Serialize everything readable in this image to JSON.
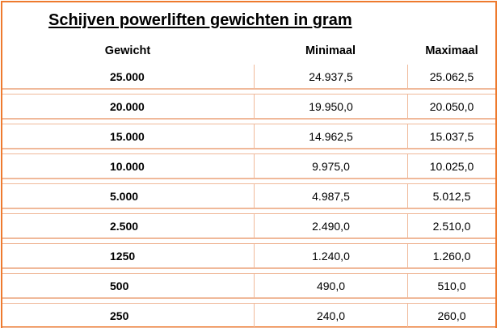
{
  "title": "Schijven powerliften gewichten in gram",
  "columns": [
    "Gewicht",
    "Minimaal",
    "Maximaal"
  ],
  "rows": [
    {
      "gewicht": "25.000",
      "min": "24.937,5",
      "max": "25.062,5"
    },
    {
      "gewicht": "20.000",
      "min": "19.950,0",
      "max": "20.050,0"
    },
    {
      "gewicht": "15.000",
      "min": "14.962,5",
      "max": "15.037,5"
    },
    {
      "gewicht": "10.000",
      "min": "9.975,0",
      "max": "10.025,0"
    },
    {
      "gewicht": "5.000",
      "min": "4.987,5",
      "max": "5.012,5"
    },
    {
      "gewicht": "2.500",
      "min": "2.490,0",
      "max": "2.510,0"
    },
    {
      "gewicht": "1250",
      "min": "1.240,0",
      "max": "1.260,0"
    },
    {
      "gewicht": "500",
      "min": "490,0",
      "max": "510,0"
    },
    {
      "gewicht": "250",
      "min": "240,0",
      "max": "260,0"
    }
  ],
  "colors": {
    "border": "#ee7a2e",
    "gridline": "#f0b99a"
  }
}
